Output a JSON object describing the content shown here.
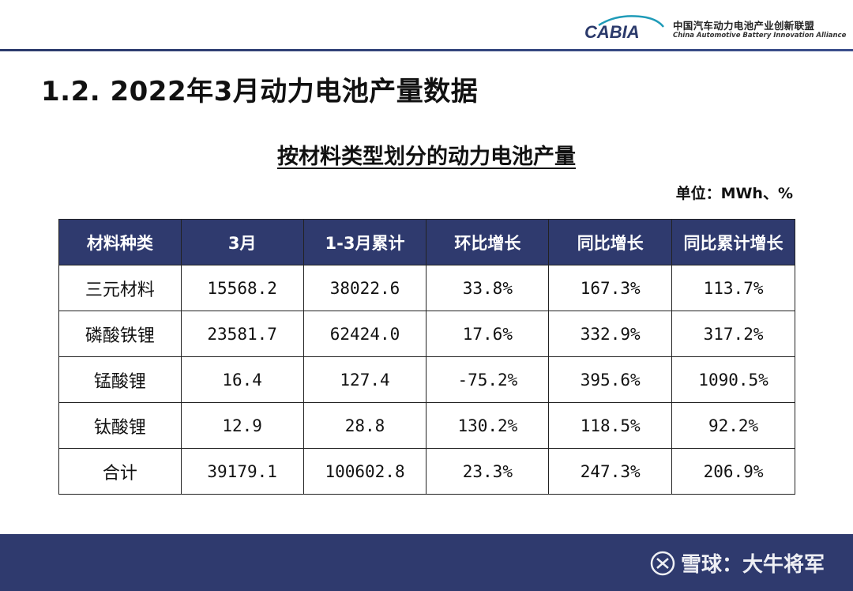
{
  "header": {
    "logo_brand": "CABIA",
    "org_name_cn": "中国汽车动力电池产业创新联盟",
    "org_name_en": "China Automotive Battery Innovation Alliance"
  },
  "page_title": "1.2. 2022年3月动力电池产量数据",
  "table_title": "按材料类型划分的动力电池产量",
  "unit_label": "单位：MWh、%",
  "table": {
    "columns": [
      "材料种类",
      "3月",
      "1-3月累计",
      "环比增长",
      "同比增长",
      "同比累计增长"
    ],
    "rows": [
      [
        "三元材料",
        "15568.2",
        "38022.6",
        "33.8%",
        "167.3%",
        "113.7%"
      ],
      [
        "磷酸铁锂",
        "23581.7",
        "62424.0",
        "17.6%",
        "332.9%",
        "317.2%"
      ],
      [
        "锰酸锂",
        "16.4",
        "127.4",
        "-75.2%",
        "395.6%",
        "1090.5%"
      ],
      [
        "钛酸锂",
        "12.9",
        "28.8",
        "130.2%",
        "118.5%",
        "92.2%"
      ],
      [
        "合计",
        "39179.1",
        "100602.8",
        "23.3%",
        "247.3%",
        "206.9%"
      ]
    ]
  },
  "watermark": {
    "text": "雪球：大牛将军",
    "icon": "snowball-icon"
  },
  "colors": {
    "header_fill": "#2f3a6e",
    "logo_accent": "#1f9bb8",
    "logo_dark": "#2b3a6b"
  }
}
